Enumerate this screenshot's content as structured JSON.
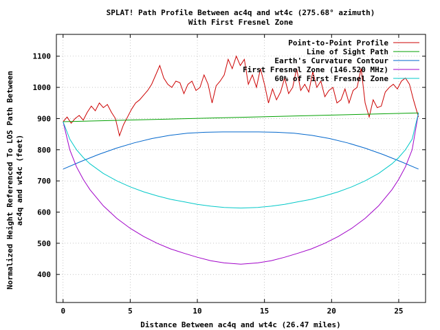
{
  "chart_data": {
    "type": "line",
    "title": "SPLAT! Path Profile Between ac4q and wt4c (275.68° azimuth)",
    "subtitle": "With First Fresnel Zone",
    "xlabel": "Distance Between ac4q and wt4c (26.47 miles)",
    "ylabel_line1": "Normalized Height Referenced To LOS Path Between",
    "ylabel_line2": "ac4q and wt4c (feet)",
    "xlim": [
      -0.5,
      27
    ],
    "ylim": [
      310,
      1170
    ],
    "x_ticks": [
      0,
      5,
      10,
      15,
      20,
      25
    ],
    "y_ticks": [
      400,
      500,
      600,
      700,
      800,
      900,
      1000,
      1100
    ],
    "grid": true,
    "legend_position": "top-right",
    "series": [
      {
        "name": "Point-to-Point Profile",
        "color": "#cc0000",
        "x": [
          0,
          0.3,
          0.6,
          0.9,
          1.2,
          1.5,
          1.8,
          2.1,
          2.4,
          2.7,
          3.0,
          3.3,
          3.6,
          3.9,
          4.2,
          4.5,
          4.8,
          5.1,
          5.4,
          5.7,
          6.0,
          6.3,
          6.6,
          6.9,
          7.2,
          7.5,
          7.8,
          8.1,
          8.4,
          8.7,
          9.0,
          9.3,
          9.6,
          9.9,
          10.2,
          10.5,
          10.8,
          11.1,
          11.4,
          11.7,
          12.0,
          12.3,
          12.6,
          12.9,
          13.2,
          13.5,
          13.8,
          14.1,
          14.4,
          14.7,
          15.0,
          15.3,
          15.6,
          15.9,
          16.2,
          16.5,
          16.8,
          17.1,
          17.4,
          17.7,
          18.0,
          18.3,
          18.6,
          18.9,
          19.2,
          19.5,
          19.8,
          20.1,
          20.4,
          20.7,
          21.0,
          21.3,
          21.6,
          21.9,
          22.2,
          22.5,
          22.8,
          23.1,
          23.4,
          23.7,
          24.0,
          24.3,
          24.6,
          24.9,
          25.2,
          25.5,
          25.8,
          26.1,
          26.47
        ],
        "y": [
          890,
          905,
          885,
          900,
          910,
          895,
          920,
          940,
          925,
          950,
          935,
          945,
          920,
          900,
          845,
          880,
          905,
          930,
          950,
          960,
          975,
          990,
          1010,
          1040,
          1070,
          1030,
          1010,
          1000,
          1020,
          1015,
          980,
          1010,
          1020,
          990,
          1000,
          1040,
          1010,
          950,
          1005,
          1020,
          1040,
          1090,
          1060,
          1100,
          1070,
          1090,
          1010,
          1040,
          1000,
          1060,
          1010,
          950,
          995,
          960,
          985,
          1030,
          980,
          1000,
          1060,
          990,
          1010,
          985,
          1050,
          1000,
          1020,
          970,
          990,
          1000,
          950,
          960,
          995,
          950,
          990,
          1000,
          1060,
          950,
          905,
          960,
          935,
          940,
          985,
          1000,
          1010,
          995,
          1020,
          1030,
          1010,
          960,
          905
        ]
      },
      {
        "name": "Line of Sight Path",
        "color": "#00a000",
        "x": [
          0,
          26.47
        ],
        "y": [
          890,
          918
        ]
      },
      {
        "name": "Earth's Curvature Contour",
        "color": "#0066cc",
        "x": [
          0,
          1.32,
          2.65,
          3.97,
          5.29,
          6.62,
          7.94,
          9.26,
          10.59,
          11.91,
          13.24,
          14.56,
          15.88,
          17.21,
          18.53,
          19.85,
          21.18,
          22.5,
          23.82,
          25.15,
          26.47
        ],
        "y": [
          738,
          762,
          785,
          805,
          822,
          836,
          846,
          853,
          856,
          857,
          857,
          857,
          856,
          853,
          846,
          836,
          822,
          805,
          785,
          762,
          738
        ]
      },
      {
        "name": "First Fresnel Zone (146.520 MHz)",
        "color": "#a000c8",
        "x": [
          0,
          0.5,
          1.0,
          1.5,
          2.0,
          3.0,
          4.0,
          5.0,
          6.0,
          7.0,
          8.0,
          9.0,
          10.0,
          11.0,
          12.0,
          13.24,
          14.5,
          15.5,
          16.5,
          17.5,
          18.5,
          19.5,
          20.5,
          21.5,
          22.5,
          23.5,
          24.5,
          25.0,
          25.5,
          26.0,
          26.47
        ],
        "y": [
          890,
          800,
          745,
          705,
          672,
          620,
          580,
          548,
          522,
          500,
          482,
          468,
          455,
          444,
          437,
          433,
          437,
          444,
          455,
          468,
          482,
          500,
          522,
          548,
          580,
          620,
          672,
          705,
          745,
          800,
          918
        ]
      },
      {
        "name": "60% of First Fresnel Zone",
        "color": "#00c8c8",
        "x": [
          0,
          0.5,
          1.0,
          1.5,
          2.0,
          3.0,
          4.0,
          5.0,
          6.0,
          7.0,
          8.0,
          9.0,
          10.0,
          11.0,
          12.0,
          13.24,
          14.5,
          15.5,
          16.5,
          17.5,
          18.5,
          19.5,
          20.5,
          21.5,
          22.5,
          23.5,
          24.5,
          25.0,
          25.5,
          26.0,
          26.47
        ],
        "y": [
          890,
          834,
          800,
          775,
          755,
          724,
          700,
          681,
          665,
          652,
          641,
          633,
          625,
          619,
          615,
          613,
          615,
          619,
          625,
          633,
          641,
          652,
          665,
          681,
          700,
          724,
          755,
          775,
          800,
          834,
          918
        ]
      }
    ]
  }
}
